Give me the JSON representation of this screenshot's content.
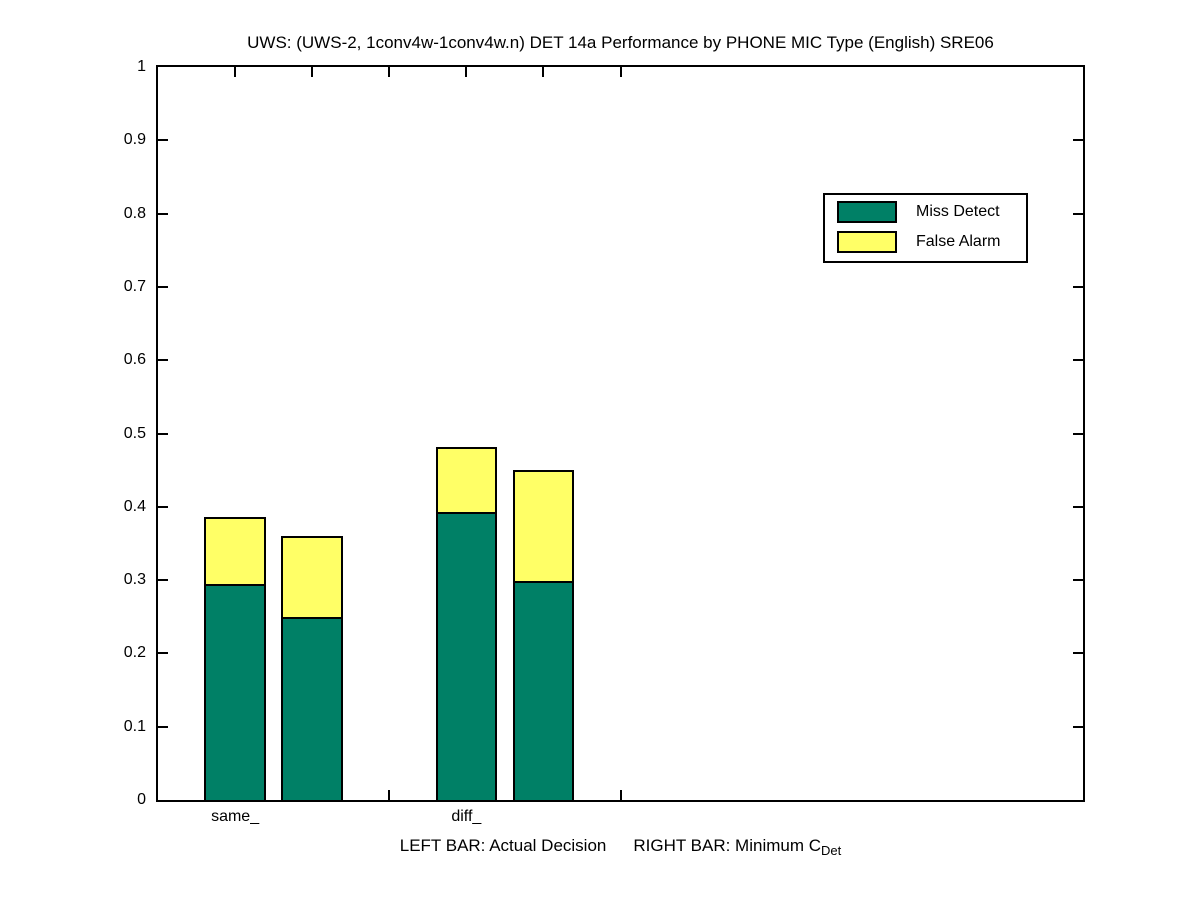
{
  "chart_data": {
    "type": "bar",
    "stacked": true,
    "title": "UWS: (UWS-2, 1conv4w-1conv4w.n) DET 14a Performance by PHONE MIC Type (English) SRE06",
    "xlabel": {
      "left": "LEFT BAR: Actual Decision",
      "right": "RIGHT BAR: Minimum C",
      "sub": "Det"
    },
    "ylim": [
      0,
      1
    ],
    "yticks": [
      0,
      0.1,
      0.2,
      0.3,
      0.4,
      0.5,
      0.6,
      0.7,
      0.8,
      0.9,
      1
    ],
    "xlim": [
      0,
      12
    ],
    "xticks": [
      1,
      2,
      3,
      4,
      5,
      6
    ],
    "bar_width": 0.8,
    "grid": false,
    "legend_position": "upper-right-inside",
    "legend": [
      {
        "label": "Miss Detect",
        "color": "#008066"
      },
      {
        "label": "False Alarm",
        "color": "#ffff66"
      }
    ],
    "groups": [
      {
        "label": "same_",
        "label_x": 1,
        "bars": [
          {
            "x": 1,
            "kind": "actual-decision",
            "miss_detect": 0.295,
            "false_alarm": 0.092,
            "total": 0.387
          },
          {
            "x": 2,
            "kind": "minimum-cdet",
            "miss_detect": 0.249,
            "false_alarm": 0.111,
            "total": 0.36
          }
        ]
      },
      {
        "label": "diff_",
        "label_x": 4,
        "bars": [
          {
            "x": 4,
            "kind": "actual-decision",
            "miss_detect": 0.393,
            "false_alarm": 0.089,
            "total": 0.482
          },
          {
            "x": 5,
            "kind": "minimum-cdet",
            "miss_detect": 0.299,
            "false_alarm": 0.151,
            "total": 0.45
          }
        ]
      }
    ]
  }
}
